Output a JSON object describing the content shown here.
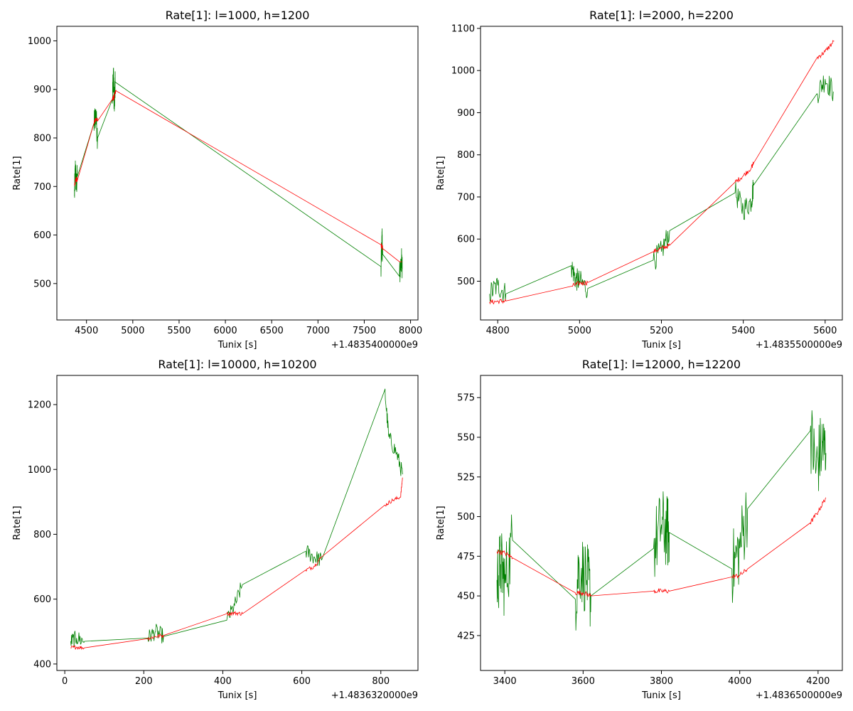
{
  "chart_data": [
    {
      "type": "line",
      "title": "Rate[1]: l=1000, h=1200",
      "xlabel": "Tunix [s]",
      "ylabel": "Rate[1]",
      "offset_text": "+1.4835400000e9",
      "xlim": [
        4180,
        8080
      ],
      "ylim": [
        425,
        1030
      ],
      "xticks": [
        4500,
        5000,
        5500,
        6000,
        6500,
        7000,
        7500,
        8000
      ],
      "yticks": [
        500,
        600,
        700,
        800,
        900,
        1000
      ],
      "series": [
        {
          "color": "#008000",
          "noise": 30,
          "points": [
            [
              4370,
              680
            ],
            [
              4380,
              740
            ],
            [
              4390,
              700
            ],
            [
              4400,
              720
            ],
            [
              4580,
              830
            ],
            [
              4600,
              850
            ],
            [
              4620,
              800
            ],
            [
              4780,
              880
            ],
            [
              4790,
              940
            ],
            [
              4800,
              860
            ],
            [
              4810,
              915
            ],
            [
              7680,
              535
            ],
            [
              7690,
              590
            ],
            [
              7700,
              560
            ],
            [
              7880,
              515
            ],
            [
              7900,
              550
            ],
            [
              7910,
              530
            ]
          ]
        },
        {
          "color": "#ff0000",
          "noise": 6,
          "points": [
            [
              4370,
              705
            ],
            [
              4385,
              715
            ],
            [
              4400,
              712
            ],
            [
              4580,
              830
            ],
            [
              4600,
              840
            ],
            [
              4620,
              835
            ],
            [
              4780,
              880
            ],
            [
              4800,
              885
            ],
            [
              4820,
              897
            ],
            [
              7680,
              580
            ],
            [
              7700,
              572
            ],
            [
              7880,
              545
            ],
            [
              7910,
              545
            ]
          ]
        }
      ]
    },
    {
      "type": "line",
      "title": "Rate[1]: l=2000, h=2200",
      "xlabel": "Tunix [s]",
      "ylabel": "Rate[1]",
      "offset_text": "+1.4835500000e9",
      "xlim": [
        4758,
        5642
      ],
      "ylim": [
        408,
        1105
      ],
      "xticks": [
        4800,
        5000,
        5200,
        5400,
        5600
      ],
      "yticks": [
        500,
        600,
        700,
        800,
        900,
        1000,
        1100
      ],
      "series": [
        {
          "color": "#008000",
          "noise": 28,
          "points": [
            [
              4780,
              470
            ],
            [
              4800,
              490
            ],
            [
              4820,
              470
            ],
            [
              4980,
              537
            ],
            [
              4990,
              505
            ],
            [
              5000,
              500
            ],
            [
              5020,
              483
            ],
            [
              5180,
              550
            ],
            [
              5200,
              570
            ],
            [
              5220,
              620
            ],
            [
              5380,
              710
            ],
            [
              5400,
              670
            ],
            [
              5420,
              690
            ],
            [
              5425,
              728
            ],
            [
              5580,
              945
            ],
            [
              5600,
              980
            ],
            [
              5620,
              950
            ]
          ]
        },
        {
          "color": "#ff0000",
          "noise": 6,
          "points": [
            [
              4780,
              450
            ],
            [
              4800,
              452
            ],
            [
              4820,
              453
            ],
            [
              4980,
              488
            ],
            [
              5000,
              495
            ],
            [
              5020,
              497
            ],
            [
              5180,
              570
            ],
            [
              5200,
              578
            ],
            [
              5220,
              585
            ],
            [
              5380,
              735
            ],
            [
              5400,
              750
            ],
            [
              5420,
              770
            ],
            [
              5425,
              780
            ],
            [
              5580,
              1030
            ],
            [
              5600,
              1045
            ],
            [
              5622,
              1070
            ]
          ]
        }
      ]
    },
    {
      "type": "line",
      "title": "Rate[1]: l=10000, h=10200",
      "xlabel": "Tunix [s]",
      "ylabel": "Rate[1]",
      "offset_text": "+1.4836320000e9",
      "xlim": [
        -20,
        894
      ],
      "ylim": [
        380,
        1290
      ],
      "xticks": [
        0,
        200,
        400,
        600,
        800
      ],
      "yticks": [
        400,
        600,
        800,
        1000,
        1200
      ],
      "series": [
        {
          "color": "#008000",
          "noise": 25,
          "points": [
            [
              15,
              470
            ],
            [
              30,
              480
            ],
            [
              50,
              470
            ],
            [
              210,
              480
            ],
            [
              230,
              500
            ],
            [
              250,
              485
            ],
            [
              410,
              535
            ],
            [
              430,
              580
            ],
            [
              450,
              645
            ],
            [
              610,
              748
            ],
            [
              630,
              730
            ],
            [
              650,
              720
            ],
            [
              810,
              1245
            ],
            [
              820,
              1100
            ],
            [
              840,
              1050
            ],
            [
              855,
              985
            ]
          ]
        },
        {
          "color": "#ff0000",
          "noise": 6,
          "points": [
            [
              15,
              450
            ],
            [
              30,
              452
            ],
            [
              50,
              450
            ],
            [
              210,
              478
            ],
            [
              230,
              485
            ],
            [
              250,
              488
            ],
            [
              410,
              555
            ],
            [
              430,
              557
            ],
            [
              450,
              555
            ],
            [
              610,
              690
            ],
            [
              630,
              700
            ],
            [
              650,
              730
            ],
            [
              810,
              890
            ],
            [
              830,
              905
            ],
            [
              850,
              915
            ],
            [
              855,
              975
            ]
          ]
        }
      ]
    },
    {
      "type": "line",
      "title": "Rate[1]: l=12000, h=12200",
      "xlabel": "Tunix [s]",
      "ylabel": "Rate[1]",
      "offset_text": "+1.4836500000e9",
      "xlim": [
        3338,
        4262
      ],
      "ylim": [
        403,
        589
      ],
      "xticks": [
        3400,
        3600,
        3800,
        4000,
        4200
      ],
      "yticks": [
        425,
        450,
        475,
        500,
        525,
        550,
        575
      ],
      "series": [
        {
          "color": "#008000",
          "noise": 24,
          "points": [
            [
              3380,
              460
            ],
            [
              3390,
              470
            ],
            [
              3400,
              458
            ],
            [
              3420,
              485
            ],
            [
              3580,
              448
            ],
            [
              3590,
              470
            ],
            [
              3610,
              460
            ],
            [
              3620,
              450
            ],
            [
              3780,
              480
            ],
            [
              3800,
              495
            ],
            [
              3815,
              490
            ],
            [
              3820,
              490
            ],
            [
              3980,
              467
            ],
            [
              4000,
              480
            ],
            [
              4020,
              505
            ],
            [
              4180,
              554
            ],
            [
              4195,
              530
            ],
            [
              4210,
              545
            ],
            [
              4220,
              540
            ]
          ]
        },
        {
          "color": "#ff0000",
          "noise": 1.5,
          "points": [
            [
              3380,
              478
            ],
            [
              3400,
              477
            ],
            [
              3420,
              474
            ],
            [
              3580,
              452
            ],
            [
              3600,
              452
            ],
            [
              3620,
              450
            ],
            [
              3780,
              453
            ],
            [
              3800,
              453
            ],
            [
              3820,
              453
            ],
            [
              3980,
              462
            ],
            [
              4000,
              463
            ],
            [
              4020,
              467
            ],
            [
              4180,
              496
            ],
            [
              4200,
              503
            ],
            [
              4220,
              512
            ]
          ]
        }
      ]
    }
  ]
}
